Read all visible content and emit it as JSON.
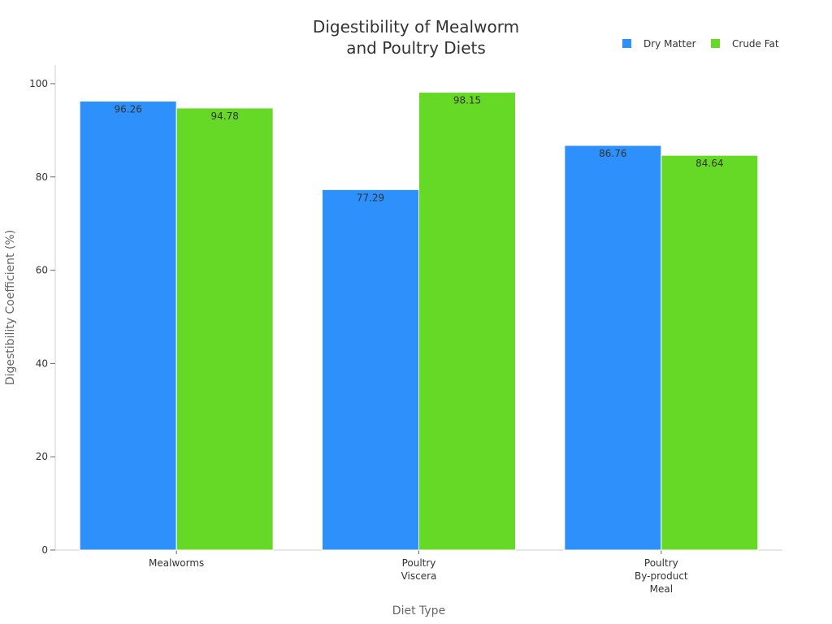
{
  "chart_data": {
    "type": "bar",
    "title": [
      "Digestibility of Mealworm",
      "and Poultry Diets"
    ],
    "xlabel": "Diet Type",
    "ylabel": "Digestibility Coefficient (%)",
    "ylim": [
      0,
      104
    ],
    "yticks": [
      0,
      20,
      40,
      60,
      80,
      100
    ],
    "grid": false,
    "legend_position": "top-right",
    "categories": [
      [
        "Mealworms"
      ],
      [
        "Poultry",
        "Viscera"
      ],
      [
        "Poultry",
        "By-product",
        "Meal"
      ]
    ],
    "series": [
      {
        "name": "Dry Matter",
        "color": "#2e90fa",
        "values": [
          96.26,
          77.29,
          86.76
        ]
      },
      {
        "name": "Crude Fat",
        "color": "#66d926",
        "values": [
          94.78,
          98.15,
          84.64
        ]
      }
    ]
  }
}
